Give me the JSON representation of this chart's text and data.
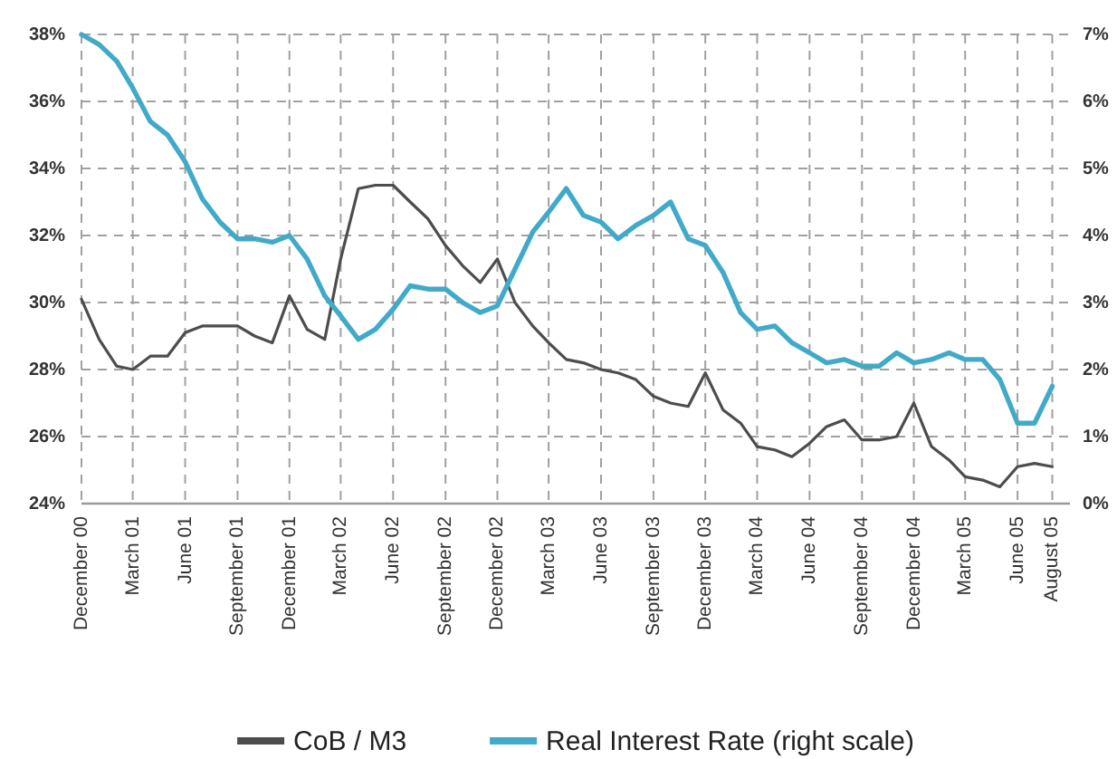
{
  "chart_data": {
    "type": "line",
    "x": [
      "2000-12",
      "2001-01",
      "2001-02",
      "2001-03",
      "2001-04",
      "2001-05",
      "2001-06",
      "2001-07",
      "2001-08",
      "2001-09",
      "2001-10",
      "2001-11",
      "2001-12",
      "2002-01",
      "2002-02",
      "2002-03",
      "2002-04",
      "2002-05",
      "2002-06",
      "2002-07",
      "2002-08",
      "2002-09",
      "2002-10",
      "2002-11",
      "2002-12",
      "2003-01",
      "2003-02",
      "2003-03",
      "2003-04",
      "2003-05",
      "2003-06",
      "2003-07",
      "2003-08",
      "2003-09",
      "2003-10",
      "2003-11",
      "2003-12",
      "2004-01",
      "2004-02",
      "2004-03",
      "2004-04",
      "2004-05",
      "2004-06",
      "2004-07",
      "2004-08",
      "2004-09",
      "2004-10",
      "2004-11",
      "2004-12",
      "2005-01",
      "2005-02",
      "2005-03",
      "2005-04",
      "2005-05",
      "2005-06",
      "2005-07",
      "2005-08"
    ],
    "xlim": [
      "2000-12",
      "2005-09"
    ],
    "xticks": [
      {
        "value": "2000-12",
        "label": "December 00"
      },
      {
        "value": "2001-03",
        "label": "March 01"
      },
      {
        "value": "2001-06",
        "label": "June 01"
      },
      {
        "value": "2001-09",
        "label": "September 01"
      },
      {
        "value": "2001-12",
        "label": "December 01"
      },
      {
        "value": "2002-03",
        "label": "March 02"
      },
      {
        "value": "2002-06",
        "label": "June 02"
      },
      {
        "value": "2002-09",
        "label": "September 02"
      },
      {
        "value": "2002-12",
        "label": "December 02"
      },
      {
        "value": "2003-03",
        "label": "March 03"
      },
      {
        "value": "2003-06",
        "label": "June 03"
      },
      {
        "value": "2003-09",
        "label": "September 03"
      },
      {
        "value": "2003-12",
        "label": "December 03"
      },
      {
        "value": "2004-03",
        "label": "March 04"
      },
      {
        "value": "2004-06",
        "label": "June 04"
      },
      {
        "value": "2004-09",
        "label": "September 04"
      },
      {
        "value": "2004-12",
        "label": "December 04"
      },
      {
        "value": "2005-03",
        "label": "March 05"
      },
      {
        "value": "2005-06",
        "label": "June 05"
      },
      {
        "value": "2005-08",
        "label": "August 05"
      }
    ],
    "ylim": [
      24,
      38
    ],
    "yticks": [
      {
        "value": 24,
        "label": "24%"
      },
      {
        "value": 26,
        "label": "26%"
      },
      {
        "value": 28,
        "label": "28%"
      },
      {
        "value": 30,
        "label": "30%"
      },
      {
        "value": 32,
        "label": "32%"
      },
      {
        "value": 34,
        "label": "34%"
      },
      {
        "value": 36,
        "label": "36%"
      },
      {
        "value": 38,
        "label": "38%"
      }
    ],
    "y2lim": [
      0,
      7
    ],
    "y2ticks": [
      {
        "value": 0,
        "label": "0%"
      },
      {
        "value": 1,
        "label": "1%"
      },
      {
        "value": 2,
        "label": "2%"
      },
      {
        "value": 3,
        "label": "3%"
      },
      {
        "value": 4,
        "label": "4%"
      },
      {
        "value": 5,
        "label": "5%"
      },
      {
        "value": 6,
        "label": "6%"
      },
      {
        "value": 7,
        "label": "7%"
      }
    ],
    "grid": true,
    "legend": "bottom",
    "series": [
      {
        "name": "CoB / M3",
        "color": "#4d4d4d",
        "values": [
          30.1,
          28.9,
          28.1,
          28.0,
          28.4,
          28.4,
          29.1,
          29.3,
          29.3,
          29.3,
          29.0,
          28.8,
          30.2,
          29.2,
          28.9,
          31.3,
          33.4,
          33.5,
          33.5,
          33.0,
          32.5,
          31.7,
          31.1,
          30.6,
          31.3,
          30.0,
          29.3,
          28.8,
          28.3,
          28.2,
          28.0,
          27.9,
          27.7,
          27.2,
          27.0,
          26.9,
          27.9,
          26.8,
          26.4,
          25.7,
          25.6,
          25.4,
          25.8,
          26.3,
          26.5,
          25.9,
          25.9,
          26.0,
          27.0,
          25.7,
          25.3,
          24.8,
          24.7,
          24.5,
          25.1,
          25.2,
          25.1
        ]
      },
      {
        "name": "Real Interest Rate (right scale)",
        "color": "#41aac8",
        "axis": "y2",
        "values": [
          7.0,
          6.85,
          6.6,
          6.2,
          5.7,
          5.5,
          5.1,
          4.55,
          4.2,
          3.95,
          3.95,
          3.9,
          4.0,
          3.65,
          3.1,
          2.8,
          2.45,
          2.6,
          2.9,
          3.25,
          3.2,
          3.2,
          3.0,
          2.85,
          2.95,
          3.5,
          4.05,
          4.35,
          4.7,
          4.3,
          4.2,
          3.95,
          4.15,
          4.3,
          4.5,
          3.95,
          3.85,
          3.45,
          2.85,
          2.6,
          2.65,
          2.4,
          2.25,
          2.1,
          2.15,
          2.05,
          2.05,
          2.25,
          2.1,
          2.15,
          2.25,
          2.15,
          2.15,
          1.85,
          1.2,
          1.2,
          1.75
        ]
      }
    ]
  }
}
